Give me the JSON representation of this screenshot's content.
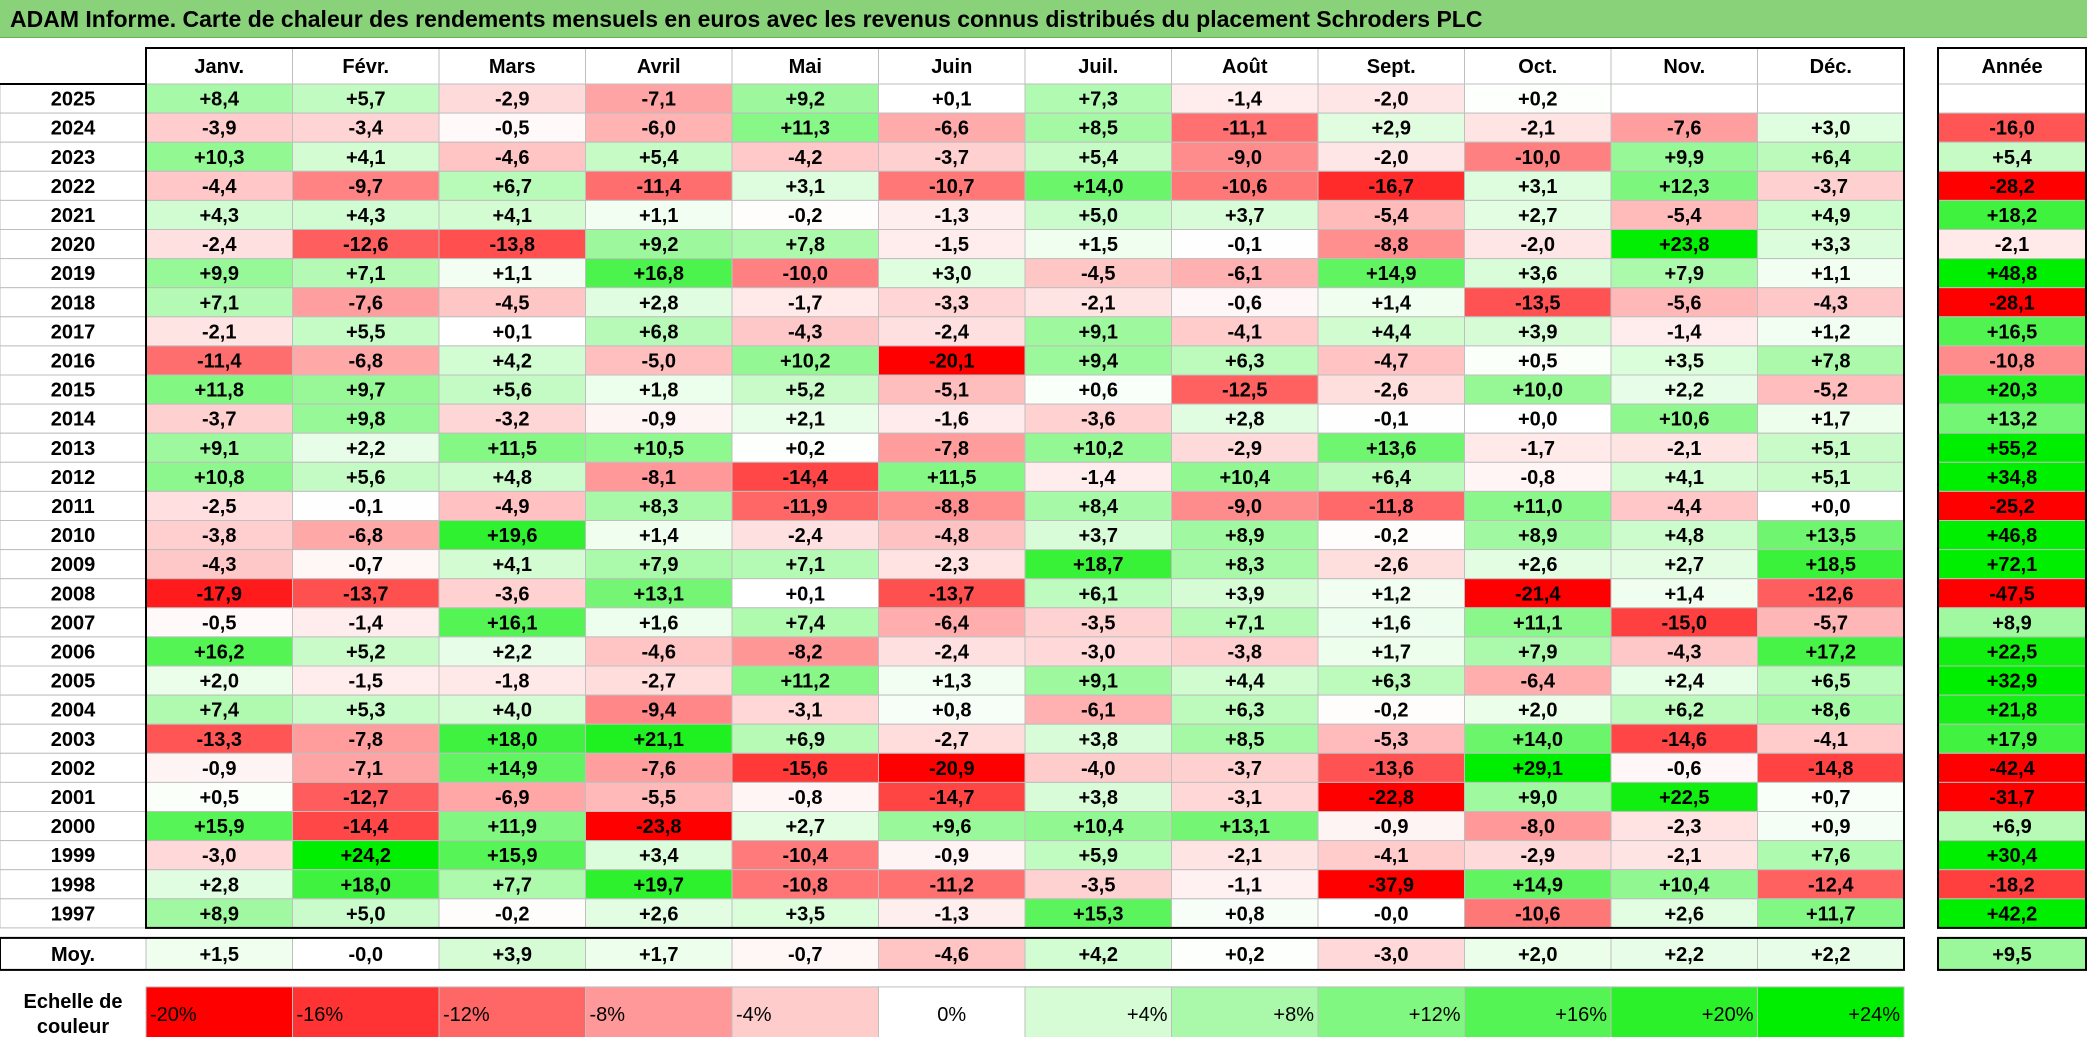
{
  "title": "ADAM Informe. Carte de chaleur des rendements mensuels en euros avec les revenus connus distribués du placement Schroders PLC",
  "chart_data": {
    "type": "heatmap",
    "title": "ADAM Informe. Carte de chaleur des rendements mensuels en euros avec les revenus connus distribués du placement Schroders PLC",
    "months": [
      "Janv.",
      "Févr.",
      "Mars",
      "Avril",
      "Mai",
      "Juin",
      "Juil.",
      "Août",
      "Sept.",
      "Oct.",
      "Nov.",
      "Déc."
    ],
    "year_header": "Année",
    "rows": [
      {
        "year": "2025",
        "m": [
          "+8,4",
          "+5,7",
          "-2,9",
          "-7,1",
          "+9,2",
          "+0,1",
          "+7,3",
          "-1,4",
          "-2,0",
          "+0,2",
          "",
          ""
        ],
        "y": ""
      },
      {
        "year": "2024",
        "m": [
          "-3,9",
          "-3,4",
          "-0,5",
          "-6,0",
          "+11,3",
          "-6,6",
          "+8,5",
          "-11,1",
          "+2,9",
          "-2,1",
          "-7,6",
          "+3,0"
        ],
        "y": "-16,0"
      },
      {
        "year": "2023",
        "m": [
          "+10,3",
          "+4,1",
          "-4,6",
          "+5,4",
          "-4,2",
          "-3,7",
          "+5,4",
          "-9,0",
          "-2,0",
          "-10,0",
          "+9,9",
          "+6,4"
        ],
        "y": "+5,4"
      },
      {
        "year": "2022",
        "m": [
          "-4,4",
          "-9,7",
          "+6,7",
          "-11,4",
          "+3,1",
          "-10,7",
          "+14,0",
          "-10,6",
          "-16,7",
          "+3,1",
          "+12,3",
          "-3,7"
        ],
        "y": "-28,2"
      },
      {
        "year": "2021",
        "m": [
          "+4,3",
          "+4,3",
          "+4,1",
          "+1,1",
          "-0,2",
          "-1,3",
          "+5,0",
          "+3,7",
          "-5,4",
          "+2,7",
          "-5,4",
          "+4,9"
        ],
        "y": "+18,2"
      },
      {
        "year": "2020",
        "m": [
          "-2,4",
          "-12,6",
          "-13,8",
          "+9,2",
          "+7,8",
          "-1,5",
          "+1,5",
          "-0,1",
          "-8,8",
          "-2,0",
          "+23,8",
          "+3,3"
        ],
        "y": "-2,1"
      },
      {
        "year": "2019",
        "m": [
          "+9,9",
          "+7,1",
          "+1,1",
          "+16,8",
          "-10,0",
          "+3,0",
          "-4,5",
          "-6,1",
          "+14,9",
          "+3,6",
          "+7,9",
          "+1,1"
        ],
        "y": "+48,8"
      },
      {
        "year": "2018",
        "m": [
          "+7,1",
          "-7,6",
          "-4,5",
          "+2,8",
          "-1,7",
          "-3,3",
          "-2,1",
          "-0,6",
          "+1,4",
          "-13,5",
          "-5,6",
          "-4,3"
        ],
        "y": "-28,1"
      },
      {
        "year": "2017",
        "m": [
          "-2,1",
          "+5,5",
          "+0,1",
          "+6,8",
          "-4,3",
          "-2,4",
          "+9,1",
          "-4,1",
          "+4,4",
          "+3,9",
          "-1,4",
          "+1,2"
        ],
        "y": "+16,5"
      },
      {
        "year": "2016",
        "m": [
          "-11,4",
          "-6,8",
          "+4,2",
          "-5,0",
          "+10,2",
          "-20,1",
          "+9,4",
          "+6,3",
          "-4,7",
          "+0,5",
          "+3,5",
          "+7,8"
        ],
        "y": "-10,8"
      },
      {
        "year": "2015",
        "m": [
          "+11,8",
          "+9,7",
          "+5,6",
          "+1,8",
          "+5,2",
          "-5,1",
          "+0,6",
          "-12,5",
          "-2,6",
          "+10,0",
          "+2,2",
          "-5,2"
        ],
        "y": "+20,3"
      },
      {
        "year": "2014",
        "m": [
          "-3,7",
          "+9,8",
          "-3,2",
          "-0,9",
          "+2,1",
          "-1,6",
          "-3,6",
          "+2,8",
          "-0,1",
          "+0,0",
          "+10,6",
          "+1,7"
        ],
        "y": "+13,2"
      },
      {
        "year": "2013",
        "m": [
          "+9,1",
          "+2,2",
          "+11,5",
          "+10,5",
          "+0,2",
          "-7,8",
          "+10,2",
          "-2,9",
          "+13,6",
          "-1,7",
          "-2,1",
          "+5,1"
        ],
        "y": "+55,2"
      },
      {
        "year": "2012",
        "m": [
          "+10,8",
          "+5,6",
          "+4,8",
          "-8,1",
          "-14,4",
          "+11,5",
          "-1,4",
          "+10,4",
          "+6,4",
          "-0,8",
          "+4,1",
          "+5,1"
        ],
        "y": "+34,8"
      },
      {
        "year": "2011",
        "m": [
          "-2,5",
          "-0,1",
          "-4,9",
          "+8,3",
          "-11,9",
          "-8,8",
          "+8,4",
          "-9,0",
          "-11,8",
          "+11,0",
          "-4,4",
          "+0,0"
        ],
        "y": "-25,2"
      },
      {
        "year": "2010",
        "m": [
          "-3,8",
          "-6,8",
          "+19,6",
          "+1,4",
          "-2,4",
          "-4,8",
          "+3,7",
          "+8,9",
          "-0,2",
          "+8,9",
          "+4,8",
          "+13,5"
        ],
        "y": "+46,8"
      },
      {
        "year": "2009",
        "m": [
          "-4,3",
          "-0,7",
          "+4,1",
          "+7,9",
          "+7,1",
          "-2,3",
          "+18,7",
          "+8,3",
          "-2,6",
          "+2,6",
          "+2,7",
          "+18,5"
        ],
        "y": "+72,1"
      },
      {
        "year": "2008",
        "m": [
          "-17,9",
          "-13,7",
          "-3,6",
          "+13,1",
          "+0,1",
          "-13,7",
          "+6,1",
          "+3,9",
          "+1,2",
          "-21,4",
          "+1,4",
          "-12,6"
        ],
        "y": "-47,5"
      },
      {
        "year": "2007",
        "m": [
          "-0,5",
          "-1,4",
          "+16,1",
          "+1,6",
          "+7,4",
          "-6,4",
          "-3,5",
          "+7,1",
          "+1,6",
          "+11,1",
          "-15,0",
          "-5,7"
        ],
        "y": "+8,9"
      },
      {
        "year": "2006",
        "m": [
          "+16,2",
          "+5,2",
          "+2,2",
          "-4,6",
          "-8,2",
          "-2,4",
          "-3,0",
          "-3,8",
          "+1,7",
          "+7,9",
          "-4,3",
          "+17,2"
        ],
        "y": "+22,5"
      },
      {
        "year": "2005",
        "m": [
          "+2,0",
          "-1,5",
          "-1,8",
          "-2,7",
          "+11,2",
          "+1,3",
          "+9,1",
          "+4,4",
          "+6,3",
          "-6,4",
          "+2,4",
          "+6,5"
        ],
        "y": "+32,9"
      },
      {
        "year": "2004",
        "m": [
          "+7,4",
          "+5,3",
          "+4,0",
          "-9,4",
          "-3,1",
          "+0,8",
          "-6,1",
          "+6,3",
          "-0,2",
          "+2,0",
          "+6,2",
          "+8,6"
        ],
        "y": "+21,8"
      },
      {
        "year": "2003",
        "m": [
          "-13,3",
          "-7,8",
          "+18,0",
          "+21,1",
          "+6,9",
          "-2,7",
          "+3,8",
          "+8,5",
          "-5,3",
          "+14,0",
          "-14,6",
          "-4,1"
        ],
        "y": "+17,9"
      },
      {
        "year": "2002",
        "m": [
          "-0,9",
          "-7,1",
          "+14,9",
          "-7,6",
          "-15,6",
          "-20,9",
          "-4,0",
          "-3,7",
          "-13,6",
          "+29,1",
          "-0,6",
          "-14,8"
        ],
        "y": "-42,4"
      },
      {
        "year": "2001",
        "m": [
          "+0,5",
          "-12,7",
          "-6,9",
          "-5,5",
          "-0,8",
          "-14,7",
          "+3,8",
          "-3,1",
          "-22,8",
          "+9,0",
          "+22,5",
          "+0,7"
        ],
        "y": "-31,7"
      },
      {
        "year": "2000",
        "m": [
          "+15,9",
          "-14,4",
          "+11,9",
          "-23,8",
          "+2,7",
          "+9,6",
          "+10,4",
          "+13,1",
          "-0,9",
          "-8,0",
          "-2,3",
          "+0,9"
        ],
        "y": "+6,9"
      },
      {
        "year": "1999",
        "m": [
          "-3,0",
          "+24,2",
          "+15,9",
          "+3,4",
          "-10,4",
          "-0,9",
          "+5,9",
          "-2,1",
          "-4,1",
          "-2,9",
          "-2,1",
          "+7,6"
        ],
        "y": "+30,4"
      },
      {
        "year": "1998",
        "m": [
          "+2,8",
          "+18,0",
          "+7,7",
          "+19,7",
          "-10,8",
          "-11,2",
          "-3,5",
          "-1,1",
          "-37,9",
          "+14,9",
          "+10,4",
          "-12,4"
        ],
        "y": "-18,2"
      },
      {
        "year": "1997",
        "m": [
          "+8,9",
          "+5,0",
          "-0,2",
          "+2,6",
          "+3,5",
          "-1,3",
          "+15,3",
          "+0,8",
          "-0,0",
          "-10,6",
          "+2,6",
          "+11,7"
        ],
        "y": "+42,2"
      }
    ],
    "average": {
      "label": "Moy.",
      "m": [
        "+1,5",
        "-0,0",
        "+3,9",
        "+1,7",
        "-0,7",
        "-4,6",
        "+4,2",
        "+0,2",
        "-3,0",
        "+2,0",
        "+2,2",
        "+2,2"
      ],
      "y": "+9,5"
    },
    "scale": {
      "label_line1": "Echelle de",
      "label_line2": "couleur",
      "stops": [
        "-20%",
        "-16%",
        "-12%",
        "-8%",
        "-4%",
        "0%",
        "+4%",
        "+8%",
        "+12%",
        "+16%",
        "+20%",
        "+24%"
      ],
      "values": [
        -20,
        -16,
        -12,
        -8,
        -4,
        0,
        4,
        8,
        12,
        16,
        20,
        24
      ]
    },
    "colors": {
      "negative_max": "#ff0000",
      "neutral": "#ffffff",
      "positive_max": "#00ee00",
      "title_bg": "#8ad27a",
      "grid": "#bfbfbf"
    }
  }
}
